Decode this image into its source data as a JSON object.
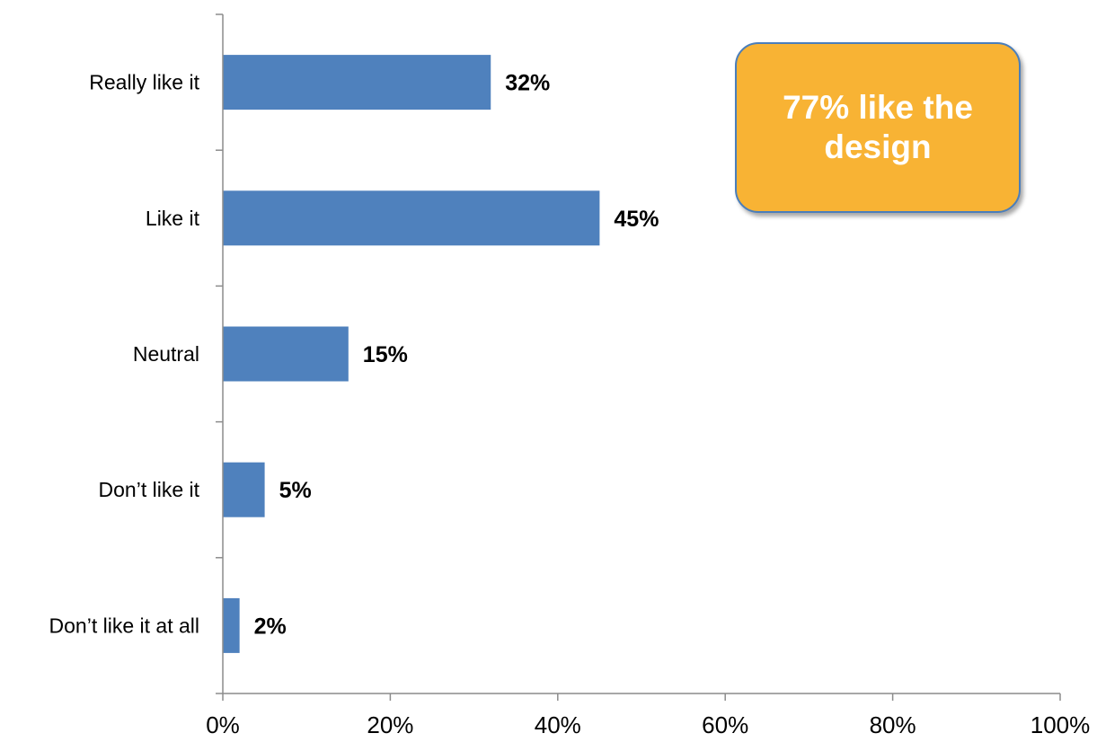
{
  "chart_data": {
    "type": "bar",
    "orientation": "horizontal",
    "categories": [
      "Really like it",
      "Like it",
      "Neutral",
      "Don’t like it",
      "Don’t like it at all"
    ],
    "values": [
      32,
      45,
      15,
      5,
      2
    ],
    "data_labels": [
      "32%",
      "45%",
      "15%",
      "5%",
      "2%"
    ],
    "x_ticks": [
      "0%",
      "20%",
      "40%",
      "60%",
      "80%",
      "100%"
    ],
    "xlim": [
      0,
      100
    ],
    "grid": false,
    "legend": "none",
    "bar_color": "#4f81bd",
    "title": "",
    "xlabel": "",
    "ylabel": ""
  },
  "callout": {
    "text": "77% like the design",
    "fill_color": "#f8b334",
    "border_color": "#4a7ebb",
    "text_color": "#ffffff"
  }
}
